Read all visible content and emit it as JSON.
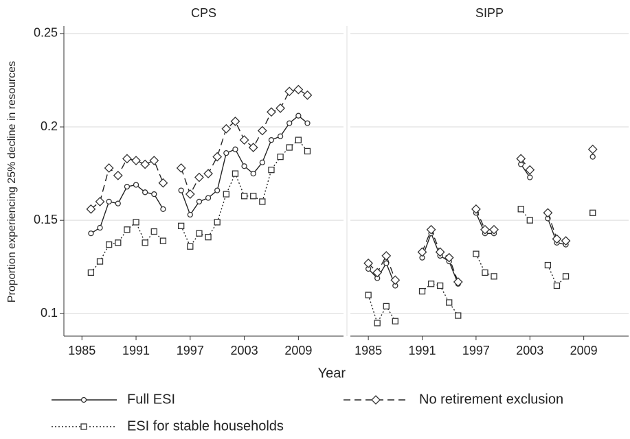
{
  "chart_data": {
    "type": "line",
    "ylabel": "Proportion experiencing 25% decline in resources",
    "xlabel": "Year",
    "ylim": [
      0.088,
      0.254
    ],
    "yticks": [
      0.1,
      0.15,
      0.2,
      0.25
    ],
    "xlim": [
      1983,
      2014
    ],
    "xticks": [
      1985,
      1991,
      1997,
      2003,
      2009
    ],
    "grid": true,
    "panels": [
      {
        "title": "CPS",
        "x": [
          1986,
          1987,
          1988,
          1989,
          1990,
          1991,
          1992,
          1993,
          1994,
          1995,
          1996,
          1997,
          1998,
          1999,
          2000,
          2001,
          2002,
          2003,
          2004,
          2005,
          2006,
          2007,
          2008,
          2009,
          2010
        ]
      },
      {
        "title": "SIPP",
        "x": [
          1985,
          1986,
          1987,
          1988,
          1989,
          1990,
          1991,
          1992,
          1993,
          1994,
          1995,
          1996,
          1997,
          1998,
          1999,
          2000,
          2001,
          2002,
          2003,
          2004,
          2005,
          2006,
          2007,
          2008,
          2009,
          2010
        ]
      }
    ],
    "series": [
      {
        "name": "Full ESI",
        "color": "#222222",
        "dash": "solid",
        "marker": "circle",
        "values": [
          [
            0.143,
            0.146,
            0.16,
            0.159,
            0.168,
            0.169,
            0.165,
            0.164,
            0.156,
            null,
            0.166,
            0.153,
            0.16,
            0.162,
            0.166,
            0.186,
            0.188,
            0.179,
            0.175,
            0.181,
            0.193,
            0.195,
            0.202,
            0.206,
            0.202
          ],
          [
            0.124,
            0.119,
            0.127,
            0.115,
            null,
            null,
            0.13,
            0.143,
            0.131,
            0.128,
            0.116,
            null,
            0.154,
            0.143,
            0.143,
            null,
            null,
            0.18,
            0.173,
            null,
            0.151,
            0.138,
            0.137,
            null,
            null,
            0.184
          ]
        ]
      },
      {
        "name": "No retirement exclusion",
        "color": "#222222",
        "dash": "dashed",
        "marker": "diamond",
        "values": [
          [
            0.156,
            0.16,
            0.178,
            0.174,
            0.183,
            0.182,
            0.18,
            0.182,
            0.17,
            null,
            0.178,
            0.164,
            0.173,
            0.175,
            0.184,
            0.199,
            0.203,
            0.193,
            0.189,
            0.198,
            0.208,
            0.21,
            0.219,
            0.22,
            0.217
          ],
          [
            0.127,
            0.122,
            0.131,
            0.118,
            null,
            null,
            0.133,
            0.145,
            0.133,
            0.13,
            0.117,
            null,
            0.156,
            0.145,
            0.145,
            null,
            null,
            0.183,
            0.177,
            null,
            0.154,
            0.14,
            0.139,
            null,
            null,
            0.188
          ]
        ]
      },
      {
        "name": "ESI for stable households",
        "color": "#222222",
        "dash": "dotted",
        "marker": "square",
        "values": [
          [
            0.122,
            0.128,
            0.137,
            0.138,
            0.145,
            0.149,
            0.138,
            0.144,
            0.139,
            null,
            0.147,
            0.136,
            0.143,
            0.141,
            0.149,
            0.164,
            0.175,
            0.163,
            0.163,
            0.16,
            0.177,
            0.184,
            0.189,
            0.193,
            0.187
          ],
          [
            0.11,
            0.095,
            0.104,
            0.096,
            null,
            null,
            0.112,
            0.116,
            0.115,
            0.106,
            0.099,
            null,
            0.132,
            0.122,
            0.12,
            null,
            null,
            0.156,
            0.15,
            null,
            0.126,
            0.115,
            0.12,
            null,
            null,
            0.154
          ]
        ]
      }
    ]
  }
}
